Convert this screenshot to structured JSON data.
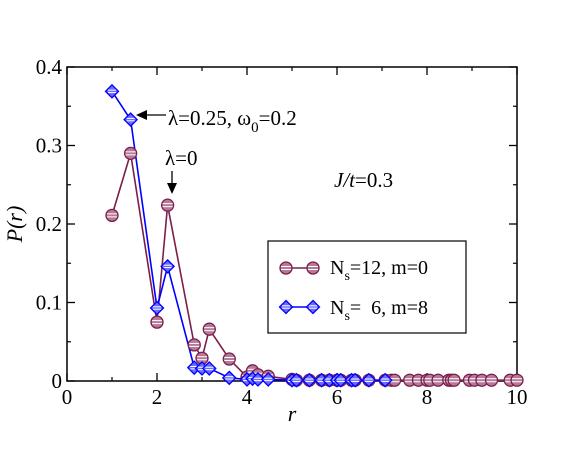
{
  "chart_data": {
    "type": "line",
    "xlabel": "r",
    "ylabel": "P(r)",
    "xlim": [
      0,
      10
    ],
    "ylim": [
      0,
      0.4
    ],
    "xticks": [
      0,
      2,
      4,
      6,
      8,
      10
    ],
    "yticks": [
      0,
      0.1,
      0.2,
      0.3,
      0.4
    ],
    "xtick_labels": [
      "0",
      "2",
      "4",
      "6",
      "8",
      "10"
    ],
    "ytick_labels": [
      "0",
      "0.1",
      "0.2",
      "0.3",
      "0.4"
    ],
    "grid": false,
    "legend_position": "center-right",
    "series": [
      {
        "name": "N_s=12, m=0",
        "color": "#7b1f4a",
        "marker": "circle",
        "x": [
          1.0,
          1.414,
          2.0,
          2.236,
          2.828,
          3.0,
          3.162,
          3.606,
          4.0,
          4.123,
          4.243,
          4.472,
          5.0,
          5.099,
          5.385,
          5.657,
          5.831,
          6.0,
          6.083,
          6.325,
          6.403,
          6.708,
          7.071,
          7.211,
          7.28,
          7.616,
          7.81,
          8.0,
          8.062,
          8.246,
          8.485,
          8.544,
          8.602,
          8.944,
          9.055,
          9.22,
          9.434,
          9.849,
          10.0
        ],
        "y": [
          0.211,
          0.29,
          0.075,
          0.224,
          0.046,
          0.029,
          0.066,
          0.028,
          0.005,
          0.013,
          0.008,
          0.006,
          0.002,
          0.001,
          0.001,
          0.001,
          0.001,
          0.001,
          0.001,
          0.001,
          0.001,
          0.001,
          0.001,
          0.001,
          0.001,
          0.001,
          0.001,
          0.001,
          0.001,
          0.001,
          0.001,
          0.001,
          0.001,
          0.001,
          0.001,
          0.001,
          0.001,
          0.001,
          0.001
        ]
      },
      {
        "name": "N_s= 6, m=8",
        "color": "#0000ff",
        "marker": "diamond",
        "x": [
          1.0,
          1.414,
          2.0,
          2.236,
          2.828,
          3.0,
          3.162,
          3.606,
          4.0,
          4.123,
          4.243,
          4.472,
          5.0,
          5.099,
          5.385,
          5.657,
          5.831,
          6.0,
          6.083,
          6.325,
          6.403,
          6.708,
          7.071
        ],
        "y": [
          0.369,
          0.333,
          0.093,
          0.146,
          0.017,
          0.016,
          0.016,
          0.004,
          0.002,
          0.003,
          0.002,
          0.002,
          0.001,
          0.001,
          0.001,
          0.001,
          0.001,
          0.001,
          0.001,
          0.001,
          0.001,
          0.001,
          0.001
        ]
      }
    ],
    "annotations": [
      {
        "text_main": "λ=0.25, ω",
        "text_sub": "0",
        "text_after": "=0.2",
        "arrow_to": [
          1.414,
          0.333
        ]
      },
      {
        "text_main": "λ=0",
        "arrow_to": [
          2.236,
          0.224
        ]
      },
      {
        "text_italic": "J/t",
        "text_after": "=0.3"
      }
    ],
    "legend": [
      {
        "prefix": "N",
        "sub": "s",
        "suffix": "=12, m=0"
      },
      {
        "prefix": "N",
        "sub": "s",
        "suffix": "=  6, m=8"
      }
    ]
  }
}
